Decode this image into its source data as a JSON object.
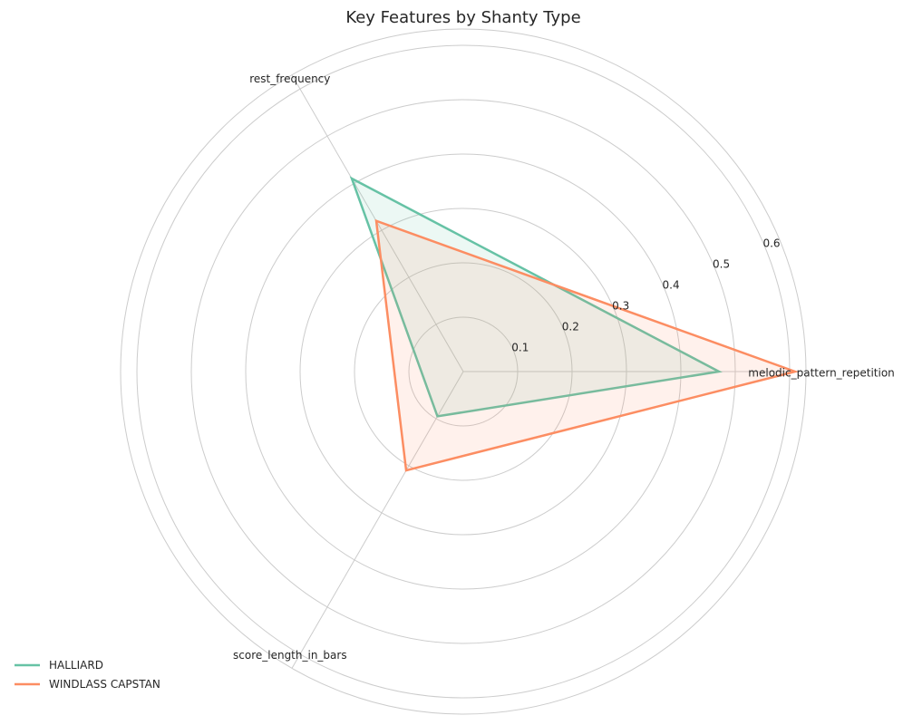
{
  "chart_data": {
    "type": "radar",
    "title": "Key Features by Shanty Type",
    "axes": [
      "melodic_pattern_repetition",
      "rest_frequency",
      "score_length_in_bars"
    ],
    "r_ticks": [
      0.1,
      0.2,
      0.3,
      0.4,
      0.5,
      0.6
    ],
    "r_max": 0.63,
    "grid": true,
    "legend_position": "bottom-left",
    "series": [
      {
        "name": "HALLIARD",
        "values": [
          0.47,
          0.41,
          0.095
        ],
        "color": "#66c2a5"
      },
      {
        "name": "WINDLASS CAPSTAN",
        "values": [
          0.61,
          0.32,
          0.21
        ],
        "color": "#fc8d62"
      }
    ]
  }
}
